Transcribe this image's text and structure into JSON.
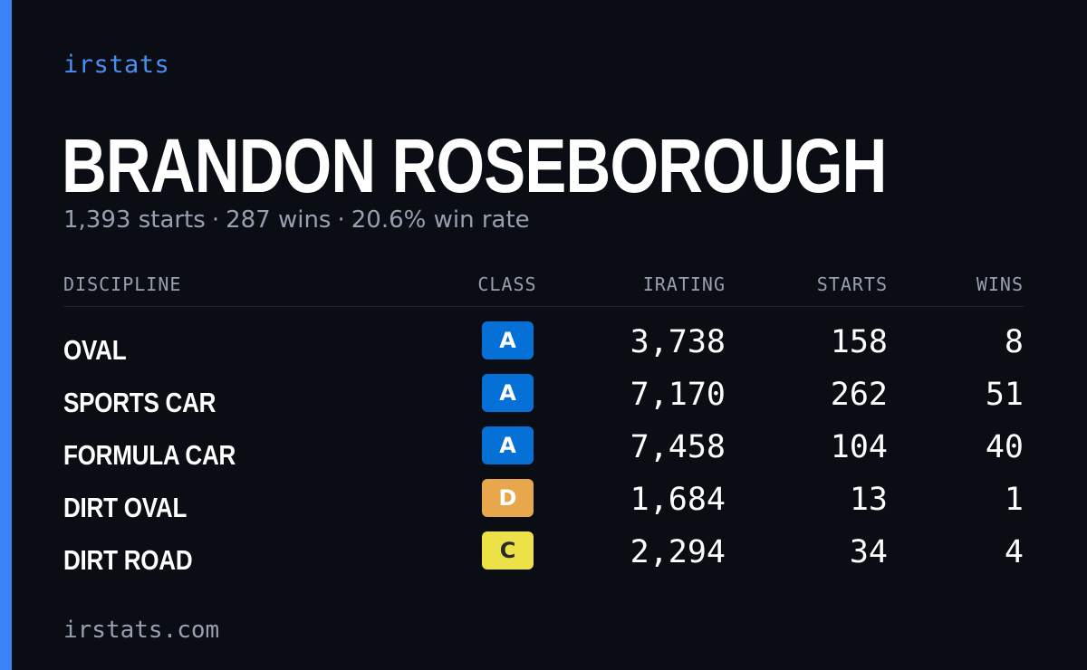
{
  "brand": "irstats",
  "player": {
    "name": "BRANDON ROSEBOROUGH",
    "starts": "1,393 starts",
    "wins": "287 wins",
    "win_rate": "20.6% win rate",
    "separator": "·"
  },
  "table": {
    "headers": {
      "discipline": "DISCIPLINE",
      "class": "CLASS",
      "irating": "IRATING",
      "starts": "STARTS",
      "wins": "WINS"
    },
    "rows": [
      {
        "discipline": "OVAL",
        "class": "A",
        "irating": "3,738",
        "starts": "158",
        "wins": "8"
      },
      {
        "discipline": "SPORTS CAR",
        "class": "A",
        "irating": "7,170",
        "starts": "262",
        "wins": "51"
      },
      {
        "discipline": "FORMULA CAR",
        "class": "A",
        "irating": "7,458",
        "starts": "104",
        "wins": "40"
      },
      {
        "discipline": "DIRT OVAL",
        "class": "D",
        "irating": "1,684",
        "starts": "13",
        "wins": "1"
      },
      {
        "discipline": "DIRT ROAD",
        "class": "C",
        "irating": "2,294",
        "starts": "34",
        "wins": "4"
      }
    ]
  },
  "class_colors": {
    "A": {
      "bg": "#0570d6",
      "fg": "#ffffff"
    },
    "C": {
      "bg": "#ece146",
      "fg": "#2a2a2a"
    },
    "D": {
      "bg": "#e8a64d",
      "fg": "#ffffff"
    }
  },
  "accent_color": "#3b82f6",
  "footer": "irstats.com"
}
